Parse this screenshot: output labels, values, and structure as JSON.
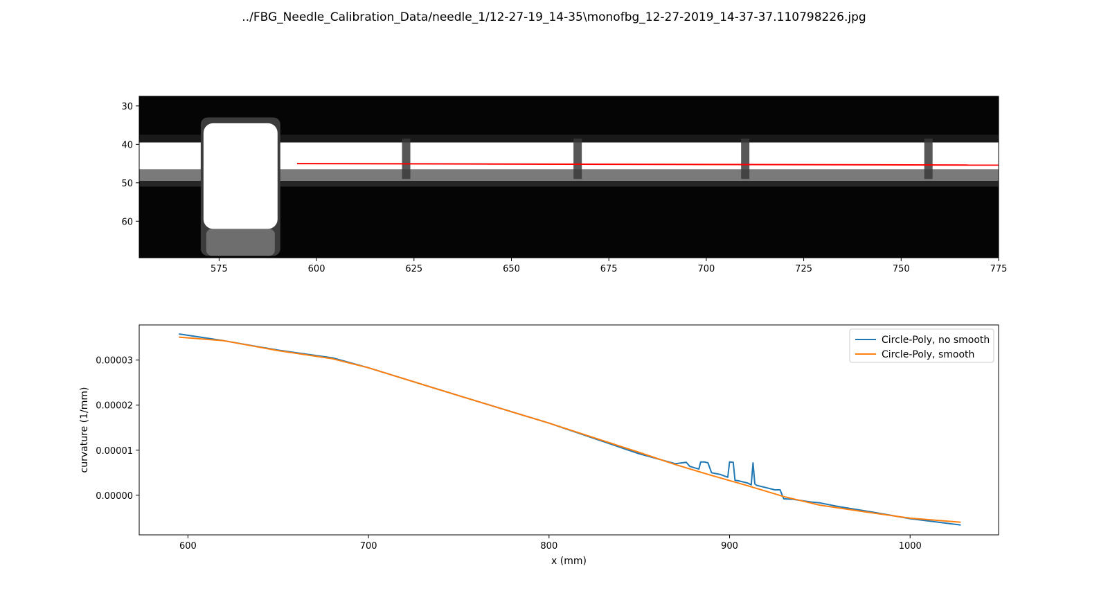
{
  "figure_title": "../FBG_Needle_Calibration_Data/needle_1/12-27-19_14-35\\monofbg_12-27-2019_14-37-37.110798226.jpg",
  "colors": {
    "fit_line": "#ff0000",
    "series_1": "#1f77b4",
    "series_2": "#ff7f0e",
    "image_background": "#050505",
    "image_bright": "#ffffff"
  },
  "chart_data": [
    {
      "type": "image",
      "title": "",
      "xlabel": "",
      "ylabel": "",
      "xlim": [
        554.5,
        775
      ],
      "ylim": [
        69.5,
        27.5
      ],
      "xticks": [
        575,
        600,
        625,
        650,
        675,
        700,
        725,
        750,
        775
      ],
      "yticks": [
        30,
        40,
        50,
        60
      ],
      "overlay_line": {
        "x": [
          595,
          775
        ],
        "y": [
          45.0,
          45.4
        ]
      },
      "bright_features": {
        "needle_band_rows": [
          39.5,
          46.5
        ],
        "lower_edge_rows": [
          46.5,
          49.5
        ],
        "blob_columns": [
          571,
          590
        ],
        "blob_rows": [
          33,
          69
        ],
        "grating_columns": [
          623,
          667,
          710,
          757
        ]
      }
    },
    {
      "type": "line",
      "title": "",
      "xlabel": "x (mm)",
      "ylabel": "curvature (1/mm)",
      "xlim": [
        573,
        1049
      ],
      "ylim": [
        -8.8e-06,
        3.78e-05
      ],
      "xticks": [
        600,
        700,
        800,
        900,
        1000
      ],
      "yticks": [
        0.0,
        1e-05,
        2e-05,
        3e-05
      ],
      "ytick_labels": [
        "0.00000",
        "0.00001",
        "0.00002",
        "0.00003"
      ],
      "legend": {
        "position": "top-right"
      },
      "series": [
        {
          "name": "Circle-Poly, no smooth",
          "x": [
            595,
            620,
            650,
            680,
            700,
            750,
            800,
            850,
            870,
            876,
            878,
            883,
            884,
            886,
            888,
            890,
            895,
            899,
            900,
            902,
            903,
            905,
            910,
            912,
            913,
            914,
            915,
            920,
            925,
            928,
            929,
            930,
            935,
            940,
            945,
            950,
            960,
            980,
            1000,
            1028
          ],
          "y": [
            3.58e-05,
            3.43e-05,
            3.22e-05,
            3.05e-05,
            2.83e-05,
            2.21e-05,
            1.6e-05,
            9.2e-06,
            7e-06,
            7.3e-06,
            6.4e-06,
            5.8e-06,
            7.4e-06,
            7.4e-06,
            7.2e-06,
            5e-06,
            4.6e-06,
            4e-06,
            7.4e-06,
            7.3e-06,
            3.3e-06,
            3.2e-06,
            2.7e-06,
            2.3e-06,
            7.2e-06,
            2.5e-06,
            2.2e-06,
            1.7e-06,
            1.2e-06,
            1.2e-06,
            2e-07,
            -8e-07,
            -9e-07,
            -1.2e-06,
            -1.5e-06,
            -1.7e-06,
            -2.5e-06,
            -3.8e-06,
            -5.2e-06,
            -6.6e-06
          ]
        },
        {
          "name": "Circle-Poly, smooth",
          "x": [
            595,
            620,
            650,
            680,
            700,
            750,
            800,
            850,
            870,
            890,
            910,
            930,
            950,
            975,
            1000,
            1028
          ],
          "y": [
            3.51e-05,
            3.43e-05,
            3.21e-05,
            3.03e-05,
            2.83e-05,
            2.21e-05,
            1.6e-05,
            9.5e-06,
            6.8e-06,
            4.4e-06,
            2.1e-06,
            -3e-07,
            -2.2e-06,
            -3.7e-06,
            -5.1e-06,
            -6e-06
          ]
        }
      ]
    }
  ]
}
